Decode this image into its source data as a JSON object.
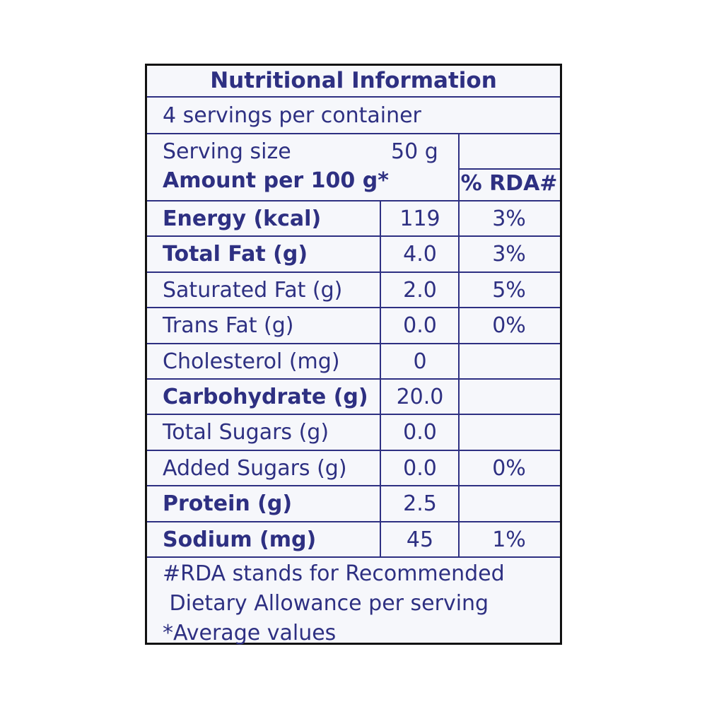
{
  "title": "Nutritional Information",
  "servings": "4 servings per container",
  "serving_size": {
    "label": "Serving size",
    "value": "50 g"
  },
  "header": {
    "label": "Amount per 100 g*",
    "rda": "% RDA#"
  },
  "rows": [
    {
      "name": "Energy (kcal)",
      "amount": "119",
      "rda": "3%",
      "bold": true
    },
    {
      "name": "Total Fat (g)",
      "amount": "4.0",
      "rda": "3%",
      "bold": true
    },
    {
      "name": "Saturated Fat (g)",
      "amount": "2.0",
      "rda": "5%",
      "bold": false
    },
    {
      "name": "Trans Fat (g)",
      "amount": "0.0",
      "rda": "0%",
      "bold": false
    },
    {
      "name": "Cholesterol (mg)",
      "amount": "0",
      "rda": null,
      "bold": false
    },
    {
      "name": "Carbohydrate (g)",
      "amount": "20.0",
      "rda": null,
      "bold": true
    },
    {
      "name": "Total Sugars (g)",
      "amount": "0.0",
      "rda": null,
      "bold": false
    },
    {
      "name": "Added Sugars (g)",
      "amount": "0.0",
      "rda": "0%",
      "bold": false
    },
    {
      "name": "Protein (g)",
      "amount": "2.5",
      "rda": null,
      "bold": true
    },
    {
      "name": "Sodium (mg)",
      "amount": "45",
      "rda": "1%",
      "bold": true
    }
  ],
  "footnotes": [
    "#RDA stands for Recommended",
    " Dietary Allowance per serving",
    "*Average values"
  ]
}
